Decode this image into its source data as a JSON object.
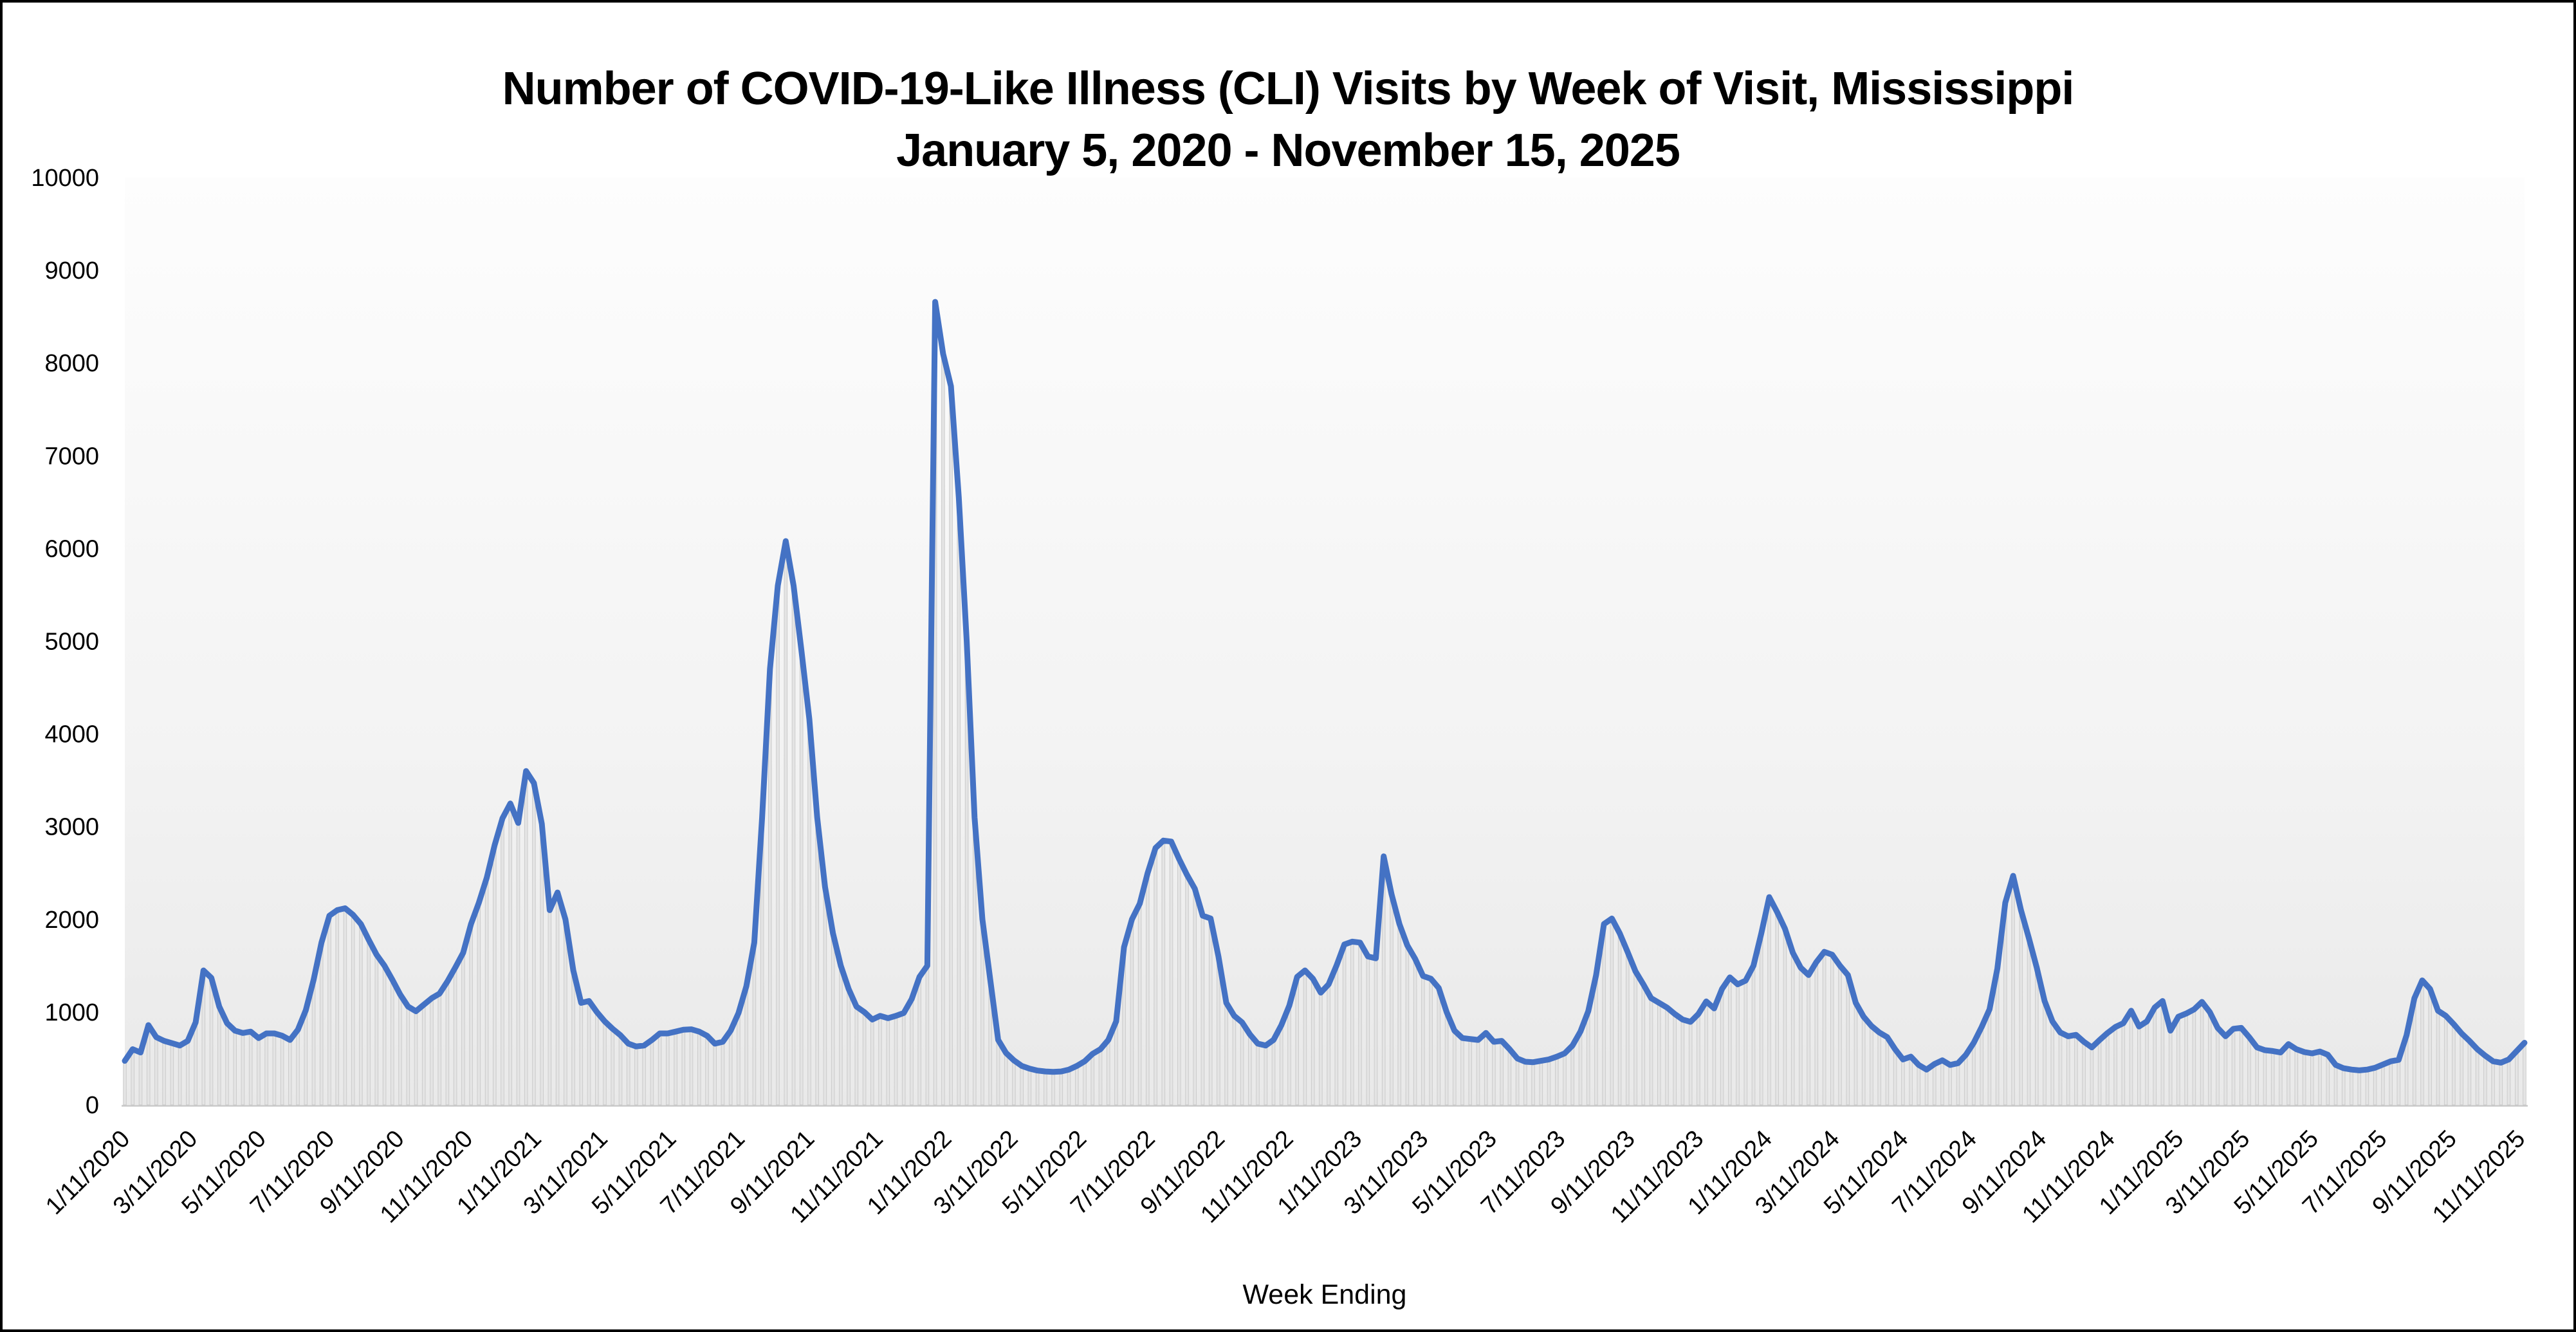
{
  "title": {
    "line1": "Number of COVID-19-Like Illness (CLI) Visits by Week of Visit, Mississippi",
    "line2": "January 5, 2020 - November 15, 2025"
  },
  "x_axis": {
    "title": "Week Ending",
    "tick_labels": [
      "1/11/2020",
      "3/11/2020",
      "5/11/2020",
      "7/11/2020",
      "9/11/2020",
      "11/11/2020",
      "1/11/2021",
      "3/11/2021",
      "5/11/2021",
      "7/11/2021",
      "9/11/2021",
      "11/11/2021",
      "1/11/2022",
      "3/11/2022",
      "5/11/2022",
      "7/11/2022",
      "9/11/2022",
      "11/11/2022",
      "1/11/2023",
      "3/11/2023",
      "5/11/2023",
      "7/11/2023",
      "9/11/2023",
      "11/11/2023",
      "1/11/2024",
      "3/11/2024",
      "5/11/2024",
      "7/11/2024",
      "9/11/2024",
      "11/11/2024",
      "1/11/2025",
      "3/11/2025",
      "5/11/2025",
      "7/11/2025",
      "9/11/2025",
      "11/11/2025"
    ],
    "tick_week_offsets": [
      0,
      8.571,
      17.286,
      26,
      34.857,
      43.571,
      52.286,
      60.714,
      69.429,
      78.143,
      87,
      95.714,
      104.429,
      112.857,
      121.571,
      130.286,
      139.143,
      147.857,
      156.571,
      165,
      173.714,
      182.429,
      191.286,
      200,
      208.714,
      217.286,
      226,
      234.714,
      243.571,
      252.286,
      261,
      269.429,
      278.143,
      286.857,
      295.714,
      304.429
    ]
  },
  "y_axis": {
    "ticks": [
      0,
      1000,
      2000,
      3000,
      4000,
      5000,
      6000,
      7000,
      8000,
      9000,
      10000
    ]
  },
  "chart_data": {
    "type": "line",
    "title": "Number of COVID-19-Like Illness (CLI) Visits by Week of Visit, Mississippi January 5, 2020 - November 15, 2025",
    "xlabel": "Week Ending",
    "ylabel": "",
    "ylim": [
      0,
      10000
    ],
    "x_start_label": "1/11/2020",
    "x_end_label": "11/11/2025",
    "weekly_points": 306,
    "grid": "off",
    "legend": "none",
    "series": [
      {
        "name": "CLI visits per week",
        "values": [
          475,
          600,
          565,
          860,
          730,
          690,
          665,
          640,
          690,
          890,
          1450,
          1370,
          1060,
          880,
          800,
          775,
          790,
          720,
          770,
          770,
          745,
          700,
          810,
          1020,
          1350,
          1750,
          2040,
          2100,
          2120,
          2050,
          1950,
          1780,
          1620,
          1500,
          1350,
          1190,
          1060,
          1010,
          1080,
          1150,
          1200,
          1330,
          1480,
          1640,
          1950,
          2180,
          2450,
          2800,
          3090,
          3250,
          3040,
          3600,
          3470,
          3030,
          2100,
          2290,
          2000,
          1450,
          1100,
          1120,
          1000,
          900,
          820,
          750,
          660,
          630,
          640,
          700,
          770,
          770,
          790,
          810,
          815,
          790,
          745,
          660,
          680,
          800,
          990,
          1280,
          1750,
          3100,
          4700,
          5600,
          6080,
          5600,
          4900,
          4160,
          3100,
          2350,
          1850,
          1500,
          1250,
          1060,
          1000,
          920,
          960,
          935,
          960,
          990,
          1140,
          1380,
          1500,
          8660,
          8100,
          7750,
          6550,
          5000,
          3100,
          2000,
          1350,
          700,
          560,
          480,
          420,
          390,
          370,
          360,
          355,
          360,
          380,
          420,
          470,
          550,
          600,
          700,
          900,
          1700,
          2000,
          2170,
          2500,
          2770,
          2850,
          2840,
          2650,
          2480,
          2330,
          2040,
          2010,
          1600,
          1100,
          960,
          890,
          760,
          660,
          640,
          700,
          860,
          1070,
          1380,
          1450,
          1360,
          1210,
          1300,
          1500,
          1730,
          1760,
          1750,
          1600,
          1580,
          2680,
          2270,
          1950,
          1720,
          1575,
          1390,
          1360,
          1260,
          1000,
          800,
          720,
          710,
          700,
          775,
          680,
          690,
          600,
          500,
          465,
          460,
          475,
          490,
          520,
          555,
          640,
          790,
          1010,
          1400,
          1950,
          2010,
          1850,
          1650,
          1440,
          1300,
          1150,
          1100,
          1050,
          980,
          920,
          895,
          980,
          1115,
          1040,
          1250,
          1375,
          1300,
          1340,
          1500,
          1850,
          2240,
          2080,
          1900,
          1640,
          1480,
          1400,
          1540,
          1650,
          1620,
          1500,
          1400,
          1100,
          950,
          850,
          780,
          730,
          600,
          490,
          520,
          430,
          380,
          440,
          480,
          430,
          450,
          540,
          670,
          840,
          1030,
          1470,
          2180,
          2470,
          2100,
          1800,
          1480,
          1120,
          900,
          780,
          740,
          755,
          680,
          620,
          700,
          775,
          840,
          880,
          1015,
          845,
          900,
          1050,
          1120,
          800,
          950,
          985,
          1030,
          1110,
          1000,
          830,
          740,
          820,
          830,
          730,
          620,
          590,
          580,
          565,
          655,
          600,
          570,
          555,
          575,
          540,
          430,
          395,
          380,
          372,
          380,
          400,
          435,
          470,
          485,
          750,
          1150,
          1342,
          1250,
          1015,
          960,
          870,
          770,
          690,
          600,
          530,
          470,
          455,
          490,
          580,
          670
        ]
      }
    ],
    "colors": {
      "line": "#4472c4",
      "bar_fill": "#e4e4e4",
      "bar_stroke": "#cccccc",
      "plot_bg_top": "#fdfdfd",
      "plot_bg_mid": "#f3f3f3",
      "plot_bg_bottom": "#e9e9e9",
      "axis_line": "#c8c8c8",
      "text": "#000000"
    }
  }
}
